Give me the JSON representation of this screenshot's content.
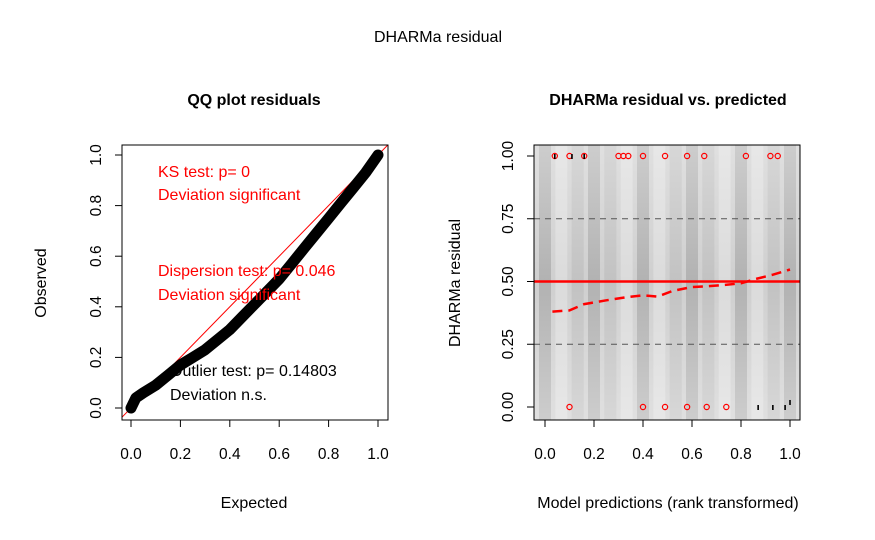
{
  "page_title": "DHARMa residual",
  "chart_data": [
    {
      "type": "scatter",
      "title": "QQ plot residuals",
      "xlabel": "Expected",
      "ylabel": "Observed",
      "xlim": [
        0,
        1
      ],
      "ylim": [
        0,
        1
      ],
      "x_ticks": [
        "0.0",
        "0.2",
        "0.4",
        "0.6",
        "0.8",
        "1.0"
      ],
      "y_ticks": [
        "0.0",
        "0.2",
        "0.4",
        "0.6",
        "0.8",
        "1.0"
      ],
      "reference_line": {
        "from": [
          0,
          0
        ],
        "to": [
          1,
          1
        ],
        "color": "#ff0000"
      },
      "qq_points": [
        [
          0.0,
          0.0
        ],
        [
          0.02,
          0.04
        ],
        [
          0.05,
          0.06
        ],
        [
          0.1,
          0.09
        ],
        [
          0.15,
          0.13
        ],
        [
          0.2,
          0.17
        ],
        [
          0.25,
          0.2
        ],
        [
          0.3,
          0.23
        ],
        [
          0.35,
          0.27
        ],
        [
          0.4,
          0.31
        ],
        [
          0.45,
          0.36
        ],
        [
          0.5,
          0.41
        ],
        [
          0.55,
          0.46
        ],
        [
          0.6,
          0.51
        ],
        [
          0.65,
          0.57
        ],
        [
          0.7,
          0.63
        ],
        [
          0.75,
          0.69
        ],
        [
          0.8,
          0.75
        ],
        [
          0.85,
          0.81
        ],
        [
          0.9,
          0.87
        ],
        [
          0.95,
          0.93
        ],
        [
          1.0,
          1.0
        ]
      ],
      "annotations": [
        {
          "line1": "KS test: p= 0",
          "line2": "Deviation  significant",
          "color": "#ff0000"
        },
        {
          "line1": "Dispersion test: p= 0.046",
          "line2": "Deviation  significant",
          "color": "#ff0000"
        },
        {
          "line1": "Outlier test: p= 0.14803",
          "line2": "Deviation  n.s.",
          "color": "#000000"
        }
      ]
    },
    {
      "type": "scatter",
      "title": "DHARMa residual vs. predicted",
      "xlabel": "Model predictions (rank transformed)",
      "ylabel": "DHARMa residual",
      "xlim": [
        0,
        1
      ],
      "ylim": [
        0,
        1
      ],
      "x_ticks": [
        "0.0",
        "0.2",
        "0.4",
        "0.6",
        "0.8",
        "1.0"
      ],
      "y_ticks": [
        "0.00",
        "0.25",
        "0.50",
        "0.75",
        "1.00"
      ],
      "dashed_lines": [
        0.25,
        0.75
      ],
      "solid_line": 0.5,
      "outliers_top": [
        0.04,
        0.1,
        0.16,
        0.3,
        0.32,
        0.34,
        0.4,
        0.49,
        0.58,
        0.65,
        0.82,
        0.92,
        0.95
      ],
      "outliers_bottom": [
        0.1,
        0.4,
        0.49,
        0.58,
        0.66,
        0.74
      ],
      "quantile_curve": [
        [
          0.03,
          0.38
        ],
        [
          0.1,
          0.385
        ],
        [
          0.16,
          0.41
        ],
        [
          0.25,
          0.425
        ],
        [
          0.33,
          0.437
        ],
        [
          0.4,
          0.445
        ],
        [
          0.46,
          0.44
        ],
        [
          0.52,
          0.462
        ],
        [
          0.6,
          0.478
        ],
        [
          0.66,
          0.481
        ],
        [
          0.74,
          0.487
        ],
        [
          0.8,
          0.493
        ],
        [
          0.86,
          0.51
        ],
        [
          0.93,
          0.527
        ],
        [
          1.0,
          0.548
        ]
      ],
      "colors": {
        "line": "#ff0000",
        "outlier": "#ff0000",
        "dashed": "#555555",
        "band_light": "#e6e6e6",
        "band_dark": "#9a9a9a"
      }
    }
  ]
}
